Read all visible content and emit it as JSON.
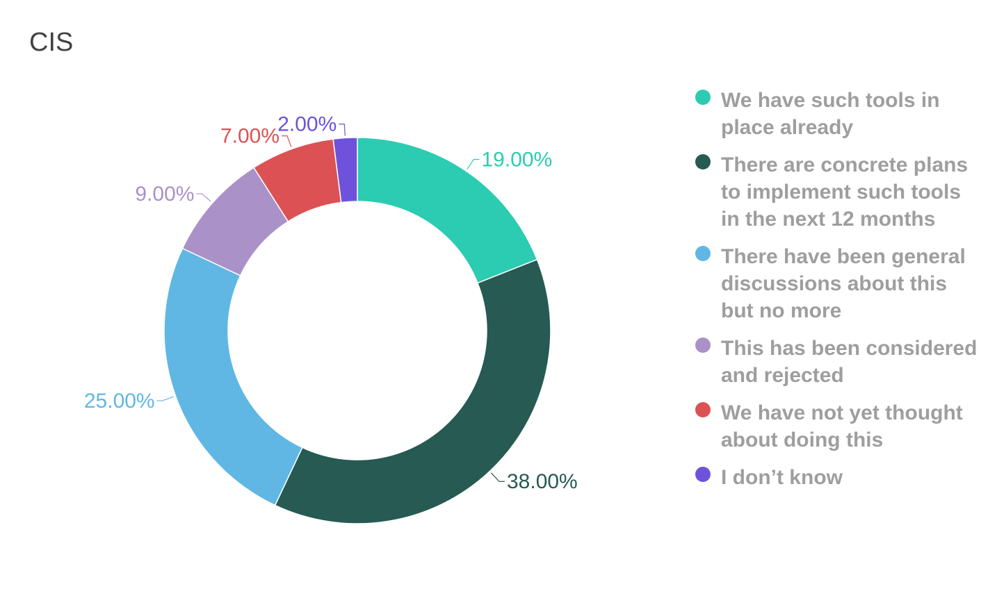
{
  "chart_data": {
    "type": "pie",
    "title": "CIS",
    "legend_position": "right",
    "series": [
      {
        "label": "We have such tools in place already",
        "value": 19.0,
        "display": "19.00%",
        "color": "#2bccb1"
      },
      {
        "label": "There are concrete plans to implement such tools in the next 12 months",
        "value": 38.0,
        "display": "38.00%",
        "color": "#265a52"
      },
      {
        "label": "There have been general discussions about this but no more",
        "value": 25.0,
        "display": "25.00%",
        "color": "#60b7e4"
      },
      {
        "label": "This has been considered and rejected",
        "value": 9.0,
        "display": "9.00%",
        "color": "#aa91c8"
      },
      {
        "label": "We have not yet thought about doing this",
        "value": 7.0,
        "display": "7.00%",
        "color": "#dc5254"
      },
      {
        "label": "I don’t know",
        "value": 2.0,
        "display": "2.00%",
        "color": "#6e52db"
      }
    ]
  }
}
